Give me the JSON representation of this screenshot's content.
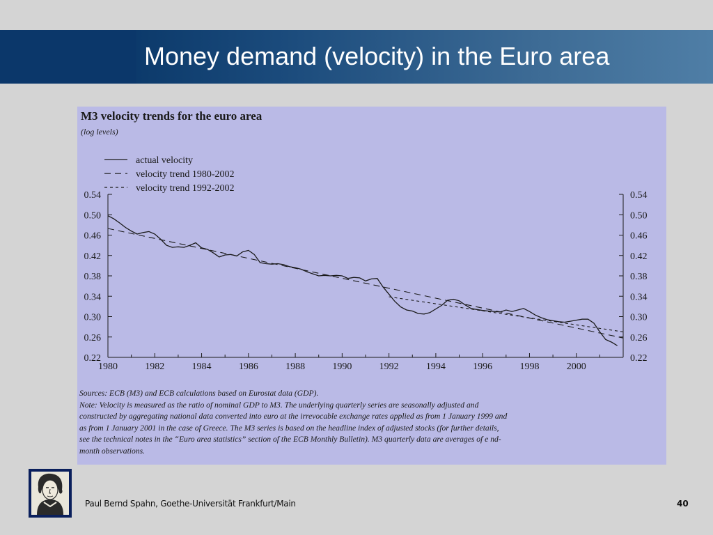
{
  "slide": {
    "title": "Money demand (velocity) in the Euro area",
    "footer": "Paul Bernd Spahn, Goethe-Universität Frankfurt/Main",
    "page_number": "40"
  },
  "chart_data": {
    "type": "line",
    "title": "M3 velocity trends for the euro area",
    "subtitle": "(log levels)",
    "xlabel": "",
    "ylabel": "",
    "xlim": [
      1980,
      2002
    ],
    "ylim": [
      0.22,
      0.54
    ],
    "x_ticks": [
      "1980",
      "1982",
      "1984",
      "1986",
      "1988",
      "1990",
      "1992",
      "1994",
      "1996",
      "1998",
      "2000"
    ],
    "y_ticks": [
      "0.54",
      "0.50",
      "0.46",
      "0.42",
      "0.38",
      "0.34",
      "0.30",
      "0.26",
      "0.22"
    ],
    "legend_position": "top-left",
    "series": [
      {
        "name": "actual velocity",
        "style": "solid",
        "x": [
          1980.0,
          1980.25,
          1980.5,
          1980.75,
          1981.0,
          1981.25,
          1981.5,
          1981.75,
          1982.0,
          1982.25,
          1982.5,
          1982.75,
          1983.0,
          1983.25,
          1983.5,
          1983.75,
          1984.0,
          1984.25,
          1984.5,
          1984.75,
          1985.0,
          1985.25,
          1985.5,
          1985.75,
          1986.0,
          1986.25,
          1986.5,
          1986.75,
          1987.0,
          1987.25,
          1987.5,
          1987.75,
          1988.0,
          1988.25,
          1988.5,
          1988.75,
          1989.0,
          1989.25,
          1989.5,
          1989.75,
          1990.0,
          1990.25,
          1990.5,
          1990.75,
          1991.0,
          1991.25,
          1991.5,
          1991.75,
          1992.0,
          1992.25,
          1992.5,
          1992.75,
          1993.0,
          1993.25,
          1993.5,
          1993.75,
          1994.0,
          1994.25,
          1994.5,
          1994.75,
          1995.0,
          1995.25,
          1995.5,
          1995.75,
          1996.0,
          1996.25,
          1996.5,
          1996.75,
          1997.0,
          1997.25,
          1997.5,
          1997.75,
          1998.0,
          1998.25,
          1998.5,
          1998.75,
          1999.0,
          1999.25,
          1999.5,
          1999.75,
          2000.0,
          2000.25,
          2000.5,
          2000.75,
          2001.0,
          2001.25,
          2001.5,
          2001.75
        ],
        "y": [
          0.498,
          0.492,
          0.484,
          0.475,
          0.468,
          0.462,
          0.465,
          0.467,
          0.462,
          0.452,
          0.44,
          0.436,
          0.437,
          0.436,
          0.44,
          0.445,
          0.435,
          0.432,
          0.425,
          0.417,
          0.421,
          0.422,
          0.419,
          0.427,
          0.43,
          0.422,
          0.406,
          0.404,
          0.403,
          0.404,
          0.402,
          0.398,
          0.396,
          0.393,
          0.388,
          0.384,
          0.38,
          0.381,
          0.38,
          0.381,
          0.38,
          0.375,
          0.377,
          0.376,
          0.37,
          0.374,
          0.375,
          0.358,
          0.344,
          0.33,
          0.319,
          0.313,
          0.311,
          0.306,
          0.305,
          0.308,
          0.315,
          0.322,
          0.332,
          0.334,
          0.331,
          0.323,
          0.316,
          0.314,
          0.312,
          0.311,
          0.31,
          0.309,
          0.313,
          0.31,
          0.313,
          0.316,
          0.31,
          0.303,
          0.298,
          0.294,
          0.292,
          0.29,
          0.289,
          0.291,
          0.293,
          0.295,
          0.295,
          0.287,
          0.27,
          0.255,
          0.25,
          0.243
        ]
      },
      {
        "name": "velocity trend 1980-2002",
        "style": "dashed",
        "x": [
          1980,
          2002
        ],
        "y": [
          0.473,
          0.258
        ]
      },
      {
        "name": "velocity trend 1992-2002",
        "style": "dotted",
        "x": [
          1992,
          2002
        ],
        "y": [
          0.339,
          0.27
        ]
      }
    ]
  },
  "notes": {
    "sources": "Sources: ECB (M3) and ECB calculations based on Eurostat data (GDP).",
    "line1": "Note: Velocity is measured as the ratio of nominal GDP to M3. The underlying quarterly series are seasonally adjusted and",
    "line2": "constructed by aggregating national data converted into euro at the irrevocable exchange rates applied as from 1 January 1999 and",
    "line3": "as from 1 January 2001 in the case of Greece. The M3 series is based on the headline index of adjusted stocks (for further details,",
    "line4": "see the technical notes in the “Euro area statistics” section of the ECB Monthly Bulletin). M3 quarterly data are averages of e  nd-",
    "line5": "month observations."
  },
  "colors": {
    "header_dark": "#0b376a",
    "header_light": "#4f7ea6",
    "chart_background": "#babae6",
    "line": "#1a1a1a"
  },
  "logo": {
    "icon": "university-portrait-logo"
  }
}
